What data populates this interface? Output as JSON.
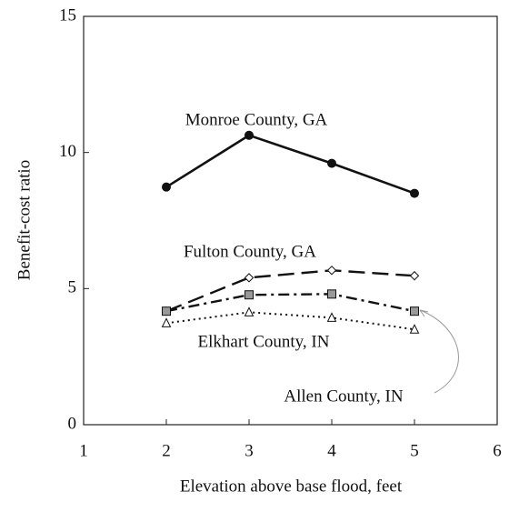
{
  "chart_data": {
    "type": "line",
    "x_label": "Elevation above base flood, feet",
    "y_label": "Benefit-cost ratio",
    "x": [
      2,
      3,
      4,
      5
    ],
    "series": [
      {
        "name": "Monroe County, GA",
        "color": "#111111",
        "values": [
          8.73,
          10.63,
          9.6,
          8.5
        ]
      },
      {
        "name": "Fulton County, GA",
        "color": "#111111",
        "values": [
          4.17,
          5.4,
          5.67,
          5.47
        ]
      },
      {
        "name": "Allen County, IN",
        "color": "#111111",
        "values": [
          4.17,
          4.77,
          4.8,
          4.17
        ]
      },
      {
        "name": "Elkhart County, IN",
        "color": "#111111",
        "values": [
          3.73,
          4.13,
          3.93,
          3.5
        ]
      }
    ],
    "xlim": [
      1,
      6
    ],
    "xticks": [
      1,
      2,
      3,
      4,
      5,
      6
    ],
    "ylim": [
      0,
      15
    ],
    "yticks": [
      0,
      5,
      10,
      15
    ]
  }
}
